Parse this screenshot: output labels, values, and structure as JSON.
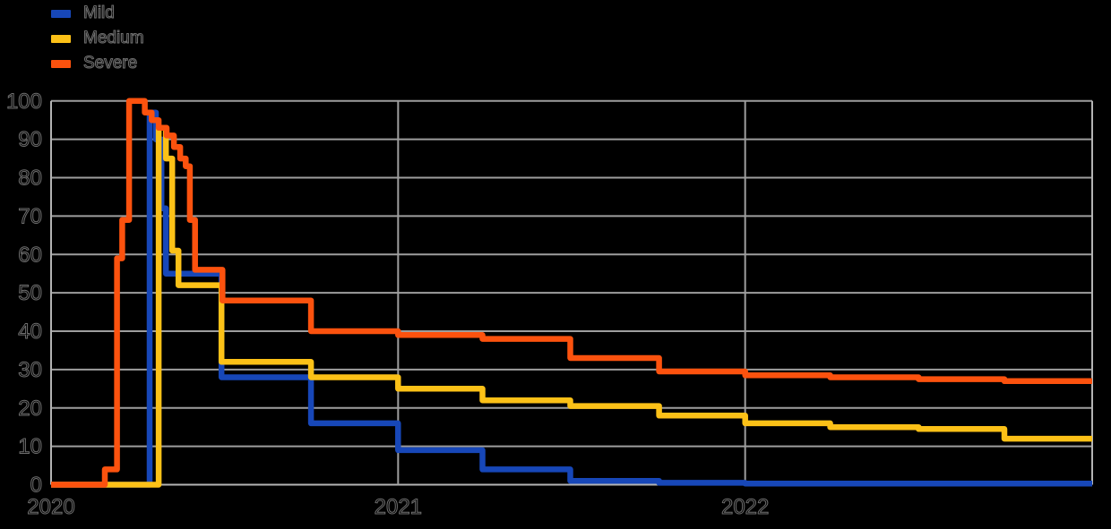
{
  "background": "#000000",
  "grid_color": "#9e9e9e",
  "axis_border_color": "#b4b4b4",
  "text_halo_color": "#6f6f6f",
  "legend": {
    "items": [
      {
        "label": "Mild",
        "color": "#1747b8"
      },
      {
        "label": "Medium",
        "color": "#fcc117"
      },
      {
        "label": "Severe",
        "color": "#fc520e"
      }
    ]
  },
  "chart_data": {
    "type": "line",
    "step_mode": "step-after",
    "title": "",
    "xlabel": "",
    "ylabel": "",
    "grid": true,
    "legend_position": "top-left",
    "x_axis": {
      "range": [
        2020,
        2023
      ],
      "ticks": [
        {
          "label": "2020",
          "value": 2020
        },
        {
          "label": "2021",
          "value": 2021
        },
        {
          "label": "2022",
          "value": 2022
        }
      ]
    },
    "y_axis": {
      "range": [
        0,
        100
      ],
      "ticks": [
        {
          "label": "0",
          "value": 0
        },
        {
          "label": "10",
          "value": 10
        },
        {
          "label": "20",
          "value": 20
        },
        {
          "label": "30",
          "value": 30
        },
        {
          "label": "40",
          "value": 40
        },
        {
          "label": "50",
          "value": 50
        },
        {
          "label": "60",
          "value": 60
        },
        {
          "label": "70",
          "value": 70
        },
        {
          "label": "80",
          "value": 80
        },
        {
          "label": "90",
          "value": 90
        },
        {
          "label": "100",
          "value": 100
        }
      ]
    },
    "series": [
      {
        "name": "Mild",
        "color": "#1747b8",
        "points": [
          [
            2020.0,
            0
          ],
          [
            2020.284,
            97
          ],
          [
            2020.302,
            90
          ],
          [
            2020.318,
            72
          ],
          [
            2020.331,
            55
          ],
          [
            2020.491,
            28
          ],
          [
            2020.749,
            16
          ],
          [
            2021.0,
            9
          ],
          [
            2021.243,
            4
          ],
          [
            2021.496,
            1
          ],
          [
            2021.752,
            0.5
          ],
          [
            2022.0,
            0.3
          ],
          [
            2023.0,
            0.3
          ]
        ]
      },
      {
        "name": "Medium",
        "color": "#fcc117",
        "points": [
          [
            2020.0,
            0
          ],
          [
            2020.31,
            93
          ],
          [
            2020.331,
            85
          ],
          [
            2020.349,
            61
          ],
          [
            2020.367,
            52
          ],
          [
            2020.491,
            32
          ],
          [
            2020.749,
            28
          ],
          [
            2021.0,
            25
          ],
          [
            2021.243,
            22
          ],
          [
            2021.496,
            20.5
          ],
          [
            2021.752,
            18
          ],
          [
            2022.0,
            16
          ],
          [
            2022.245,
            15
          ],
          [
            2022.5,
            14.5
          ],
          [
            2022.747,
            12
          ],
          [
            2023.0,
            12
          ]
        ]
      },
      {
        "name": "Severe",
        "color": "#fc520e",
        "points": [
          [
            2020.0,
            0
          ],
          [
            2020.155,
            4
          ],
          [
            2020.19,
            59
          ],
          [
            2020.205,
            69
          ],
          [
            2020.225,
            100
          ],
          [
            2020.27,
            97
          ],
          [
            2020.29,
            95
          ],
          [
            2020.31,
            93
          ],
          [
            2020.333,
            91
          ],
          [
            2020.354,
            88
          ],
          [
            2020.372,
            85
          ],
          [
            2020.388,
            83
          ],
          [
            2020.4,
            69
          ],
          [
            2020.415,
            56
          ],
          [
            2020.494,
            48
          ],
          [
            2020.749,
            40
          ],
          [
            2021.0,
            39
          ],
          [
            2021.243,
            38
          ],
          [
            2021.496,
            33
          ],
          [
            2021.752,
            29.5
          ],
          [
            2022.0,
            28.5
          ],
          [
            2022.245,
            28
          ],
          [
            2022.5,
            27.5
          ],
          [
            2022.747,
            27
          ],
          [
            2023.0,
            27
          ]
        ]
      }
    ]
  }
}
